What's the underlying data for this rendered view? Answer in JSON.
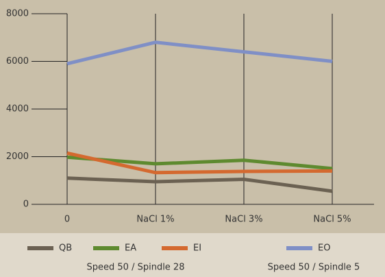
{
  "chart_data": {
    "type": "line",
    "categories": [
      "0",
      "NaCl 1%",
      "NaCl 3%",
      "NaCl 5%"
    ],
    "series": [
      {
        "name": "QB",
        "color": "#6b6152",
        "values": [
          1100,
          950,
          1050,
          550
        ]
      },
      {
        "name": "EA",
        "color": "#5e8a2f",
        "values": [
          1980,
          1700,
          1850,
          1500
        ]
      },
      {
        "name": "EI",
        "color": "#d4692f",
        "values": [
          2150,
          1330,
          1380,
          1400
        ]
      },
      {
        "name": "EO",
        "color": "#7f8fc6",
        "values": [
          5900,
          6800,
          6400,
          6000
        ]
      }
    ],
    "ylim": [
      0,
      8000
    ],
    "yticks": [
      0,
      2000,
      4000,
      6000,
      8000
    ],
    "notes": [
      "Speed 50 / Spindle 28",
      "Speed 50 / Spindle 5"
    ]
  }
}
